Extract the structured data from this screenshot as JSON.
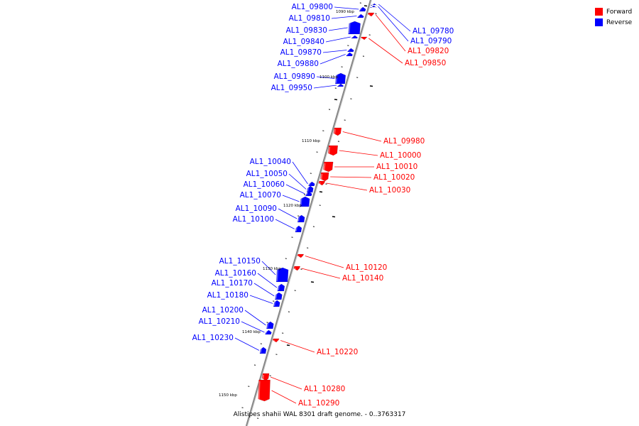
{
  "legend": {
    "forward_label": "Forward",
    "reverse_label": "Reverse",
    "forward_color": "#ff0000",
    "reverse_color": "#0000ff"
  },
  "caption": "Alistipes shahii WAL 8301 draft genome. - 0..3763317",
  "colors": {
    "forward": "#ff0000",
    "reverse": "#0000ff",
    "axis": "#888888",
    "tick": "#000000"
  },
  "scale_labels": [
    "1090 kbp",
    "1100 kbp",
    "1110 kbp",
    "1120 kbp",
    "1130 kbp",
    "1140 kbp",
    "1150 kbp"
  ],
  "genes": [
    {
      "id": "AL1_09800",
      "strand": "reverse"
    },
    {
      "id": "AL1_09810",
      "strand": "reverse"
    },
    {
      "id": "AL1_09830",
      "strand": "reverse"
    },
    {
      "id": "AL1_09840",
      "strand": "reverse"
    },
    {
      "id": "AL1_09870",
      "strand": "reverse"
    },
    {
      "id": "AL1_09880",
      "strand": "reverse"
    },
    {
      "id": "AL1_09890",
      "strand": "reverse"
    },
    {
      "id": "AL1_09950",
      "strand": "reverse"
    },
    {
      "id": "AL1_09780",
      "strand": "reverse"
    },
    {
      "id": "AL1_09790",
      "strand": "reverse"
    },
    {
      "id": "AL1_09820",
      "strand": "forward"
    },
    {
      "id": "AL1_09850",
      "strand": "forward"
    },
    {
      "id": "AL1_09980",
      "strand": "forward"
    },
    {
      "id": "AL1_10000",
      "strand": "forward"
    },
    {
      "id": "AL1_10010",
      "strand": "forward"
    },
    {
      "id": "AL1_10020",
      "strand": "forward"
    },
    {
      "id": "AL1_10030",
      "strand": "forward"
    },
    {
      "id": "AL1_10040",
      "strand": "reverse"
    },
    {
      "id": "AL1_10050",
      "strand": "reverse"
    },
    {
      "id": "AL1_10060",
      "strand": "reverse"
    },
    {
      "id": "AL1_10070",
      "strand": "reverse"
    },
    {
      "id": "AL1_10090",
      "strand": "reverse"
    },
    {
      "id": "AL1_10100",
      "strand": "reverse"
    },
    {
      "id": "AL1_10120",
      "strand": "forward"
    },
    {
      "id": "AL1_10140",
      "strand": "forward"
    },
    {
      "id": "AL1_10150",
      "strand": "reverse"
    },
    {
      "id": "AL1_10160",
      "strand": "reverse"
    },
    {
      "id": "AL1_10170",
      "strand": "reverse"
    },
    {
      "id": "AL1_10180",
      "strand": "reverse"
    },
    {
      "id": "AL1_10200",
      "strand": "reverse"
    },
    {
      "id": "AL1_10210",
      "strand": "reverse"
    },
    {
      "id": "AL1_10230",
      "strand": "reverse"
    },
    {
      "id": "AL1_10220",
      "strand": "forward"
    },
    {
      "id": "AL1_10280",
      "strand": "forward"
    },
    {
      "id": "AL1_10290",
      "strand": "forward"
    }
  ]
}
